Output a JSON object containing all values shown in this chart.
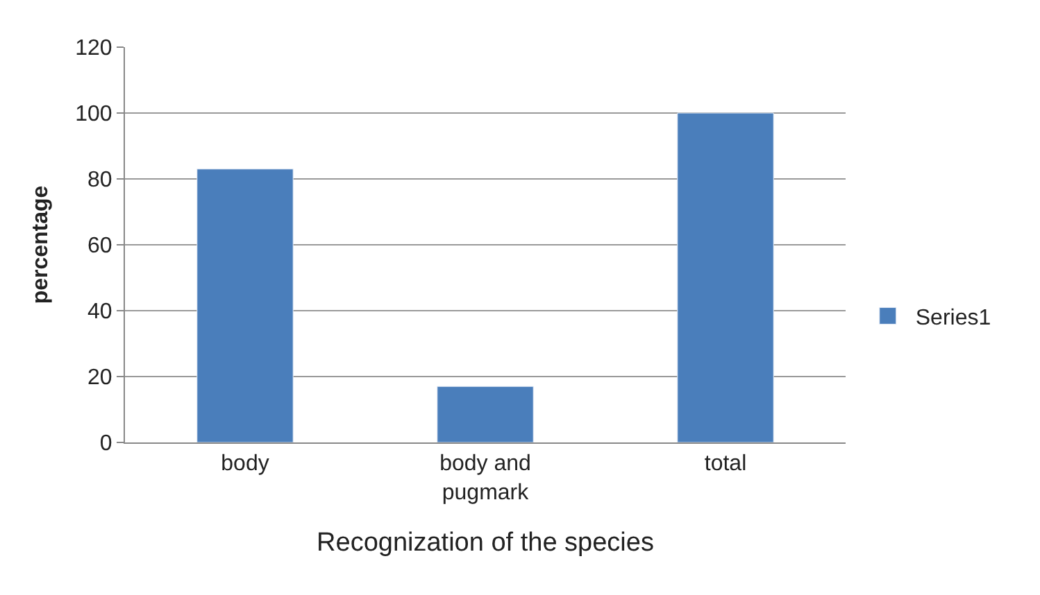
{
  "chart_data": {
    "type": "bar",
    "xlabel": "Recognization of the species",
    "ylabel": "percentage",
    "categories": [
      "body",
      "body and pugmark",
      "total"
    ],
    "series": [
      {
        "name": "Series1",
        "color": "#4a7ebb",
        "values": [
          83,
          17,
          100
        ]
      }
    ],
    "ylim": [
      0,
      120
    ],
    "yticks": [
      0,
      20,
      40,
      60,
      80,
      100,
      120
    ],
    "grid": "y",
    "legend": "right"
  }
}
